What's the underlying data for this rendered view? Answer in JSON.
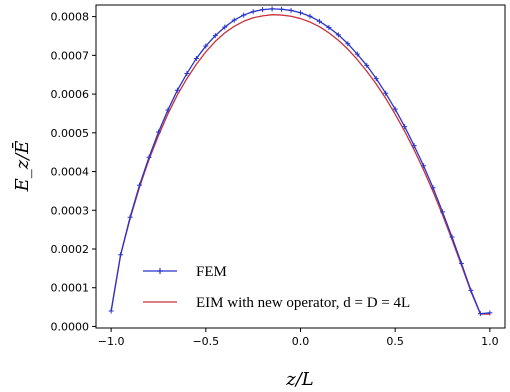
{
  "chart_data": {
    "type": "line",
    "xlabel": "z/L",
    "ylabel": "E_z/Ē",
    "xlim": [
      -1.08,
      1.08
    ],
    "ylim": [
      -4e-06,
      0.00083
    ],
    "xticks": [
      -1.0,
      -0.5,
      0.0,
      0.5,
      1.0
    ],
    "xtick_labels": [
      "−1.0",
      "−0.5",
      "0.0",
      "0.5",
      "1.0"
    ],
    "yticks": [
      0.0,
      0.0001,
      0.0002,
      0.0003,
      0.0004,
      0.0005,
      0.0006,
      0.0007,
      0.0008
    ],
    "ytick_labels": [
      "0.0000",
      "0.0001",
      "0.0002",
      "0.0003",
      "0.0004",
      "0.0005",
      "0.0006",
      "0.0007",
      "0.0008"
    ],
    "grid": false,
    "legend_position": "lower-center",
    "series": [
      {
        "name": "FEM",
        "color": "#2a35c9",
        "marker": "plus",
        "x": [
          -1.0,
          -0.95,
          -0.9,
          -0.85,
          -0.8,
          -0.75,
          -0.7,
          -0.65,
          -0.6,
          -0.55,
          -0.5,
          -0.45,
          -0.4,
          -0.35,
          -0.3,
          -0.25,
          -0.2,
          -0.15,
          -0.1,
          -0.05,
          0.0,
          0.05,
          0.1,
          0.15,
          0.2,
          0.25,
          0.3,
          0.35,
          0.4,
          0.45,
          0.5,
          0.55,
          0.6,
          0.65,
          0.7,
          0.75,
          0.8,
          0.85,
          0.9,
          0.95,
          1.0
        ],
        "y": [
          4e-05,
          0.000185,
          0.000282,
          0.000365,
          0.000437,
          0.000502,
          0.000559,
          0.00061,
          0.000653,
          0.000692,
          0.000724,
          0.000751,
          0.000773,
          0.000791,
          0.000804,
          0.000813,
          0.000818,
          0.00082,
          0.000819,
          0.000816,
          0.00081,
          0.000801,
          0.000788,
          0.000772,
          0.000753,
          0.00073,
          0.000703,
          0.000674,
          0.00064,
          0.000602,
          0.000561,
          0.000516,
          0.000467,
          0.000415,
          0.000358,
          0.000296,
          0.000231,
          0.000163,
          9.3e-05,
          3.3e-05,
          3.5e-05
        ]
      },
      {
        "name": "EIM with new operator, d = D = 4L",
        "color": "#c8323c",
        "marker": "none",
        "x": [
          -1.0,
          -0.95,
          -0.9,
          -0.85,
          -0.8,
          -0.75,
          -0.7,
          -0.65,
          -0.6,
          -0.55,
          -0.5,
          -0.45,
          -0.4,
          -0.35,
          -0.3,
          -0.25,
          -0.2,
          -0.15,
          -0.1,
          -0.05,
          0.0,
          0.05,
          0.1,
          0.15,
          0.2,
          0.25,
          0.3,
          0.35,
          0.4,
          0.45,
          0.5,
          0.55,
          0.6,
          0.65,
          0.7,
          0.75,
          0.8,
          0.85,
          0.9,
          0.95,
          1.0
        ],
        "y": [
          4e-05,
          0.000185,
          0.000278,
          0.00036,
          0.000431,
          0.000493,
          0.000549,
          0.000598,
          0.00064,
          0.000677,
          0.000709,
          0.000736,
          0.000758,
          0.000775,
          0.000788,
          0.000797,
          0.000802,
          0.000805,
          0.000804,
          0.000801,
          0.000795,
          0.000786,
          0.000774,
          0.000758,
          0.000739,
          0.000716,
          0.000689,
          0.000659,
          0.000626,
          0.000589,
          0.000548,
          0.000504,
          0.000456,
          0.000404,
          0.000348,
          0.000288,
          0.000224,
          0.000158,
          9e-05,
          3.2e-05,
          3.2e-05
        ]
      }
    ]
  }
}
